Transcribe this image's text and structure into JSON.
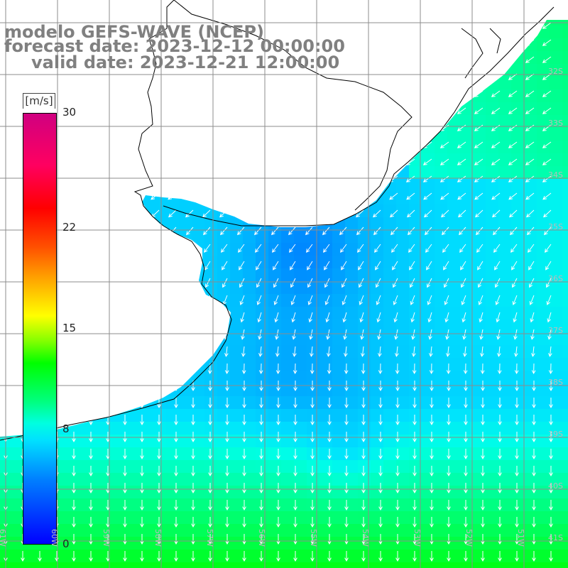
{
  "title": {
    "line1": "modelo GEFS-WAVE (NCEP)",
    "line2": "forecast date: 2023-12-12 00:00:00",
    "line3": "valid date: 2023-12-21 12:00:00"
  },
  "colorbar": {
    "units": "[m/s]",
    "ticks": [
      {
        "label": "30",
        "value": 30
      },
      {
        "label": "22",
        "value": 22
      },
      {
        "label": "15",
        "value": 15
      },
      {
        "label": "8",
        "value": 8
      },
      {
        "label": "0",
        "value": 0
      }
    ],
    "min": 0,
    "max": 30
  },
  "grid_labels": {
    "latitudes": [
      "32S",
      "33S",
      "34S",
      "35S",
      "36S",
      "37S",
      "38S",
      "39S",
      "40S",
      "41S"
    ],
    "longitudes": [
      "61W",
      "60W",
      "59W",
      "58W",
      "57W",
      "56W",
      "55W",
      "54W",
      "53W",
      "52W",
      "51W"
    ]
  },
  "colors": {
    "land": "#ffffff",
    "coast": "#000000",
    "grid": "#8c8c8c",
    "arrow": "#ffffff",
    "title_text": "#808080"
  }
}
